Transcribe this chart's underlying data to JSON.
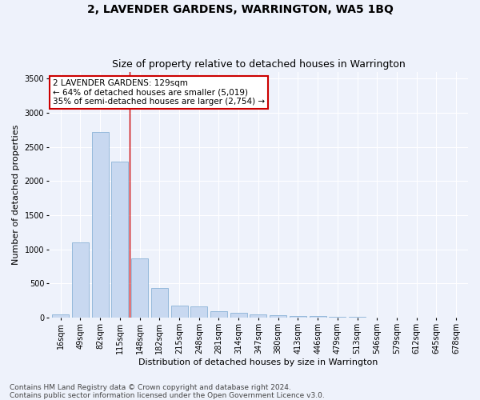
{
  "title": "2, LAVENDER GARDENS, WARRINGTON, WA5 1BQ",
  "subtitle": "Size of property relative to detached houses in Warrington",
  "xlabel": "Distribution of detached houses by size in Warrington",
  "ylabel": "Number of detached properties",
  "categories": [
    "16sqm",
    "49sqm",
    "82sqm",
    "115sqm",
    "148sqm",
    "182sqm",
    "215sqm",
    "248sqm",
    "281sqm",
    "314sqm",
    "347sqm",
    "380sqm",
    "413sqm",
    "446sqm",
    "479sqm",
    "513sqm",
    "546sqm",
    "579sqm",
    "612sqm",
    "645sqm",
    "678sqm"
  ],
  "values": [
    50,
    1100,
    2720,
    2280,
    870,
    430,
    170,
    165,
    90,
    65,
    50,
    40,
    25,
    20,
    8,
    8,
    5,
    5,
    3,
    2,
    2
  ],
  "bar_color": "#c8d8f0",
  "bar_edgecolor": "#7aa8d0",
  "red_line_index": 3.5,
  "annotation_text": "2 LAVENDER GARDENS: 129sqm\n← 64% of detached houses are smaller (5,019)\n35% of semi-detached houses are larger (2,754) →",
  "annotation_box_color": "#ffffff",
  "annotation_box_edgecolor": "#cc0000",
  "ylim": [
    0,
    3600
  ],
  "yticks": [
    0,
    500,
    1000,
    1500,
    2000,
    2500,
    3000,
    3500
  ],
  "background_color": "#eef2fb",
  "grid_color": "#ffffff",
  "footer_line1": "Contains HM Land Registry data © Crown copyright and database right 2024.",
  "footer_line2": "Contains public sector information licensed under the Open Government Licence v3.0.",
  "title_fontsize": 10,
  "subtitle_fontsize": 9,
  "xlabel_fontsize": 8,
  "ylabel_fontsize": 8,
  "tick_fontsize": 7,
  "footer_fontsize": 6.5,
  "annotation_fontsize": 7.5
}
